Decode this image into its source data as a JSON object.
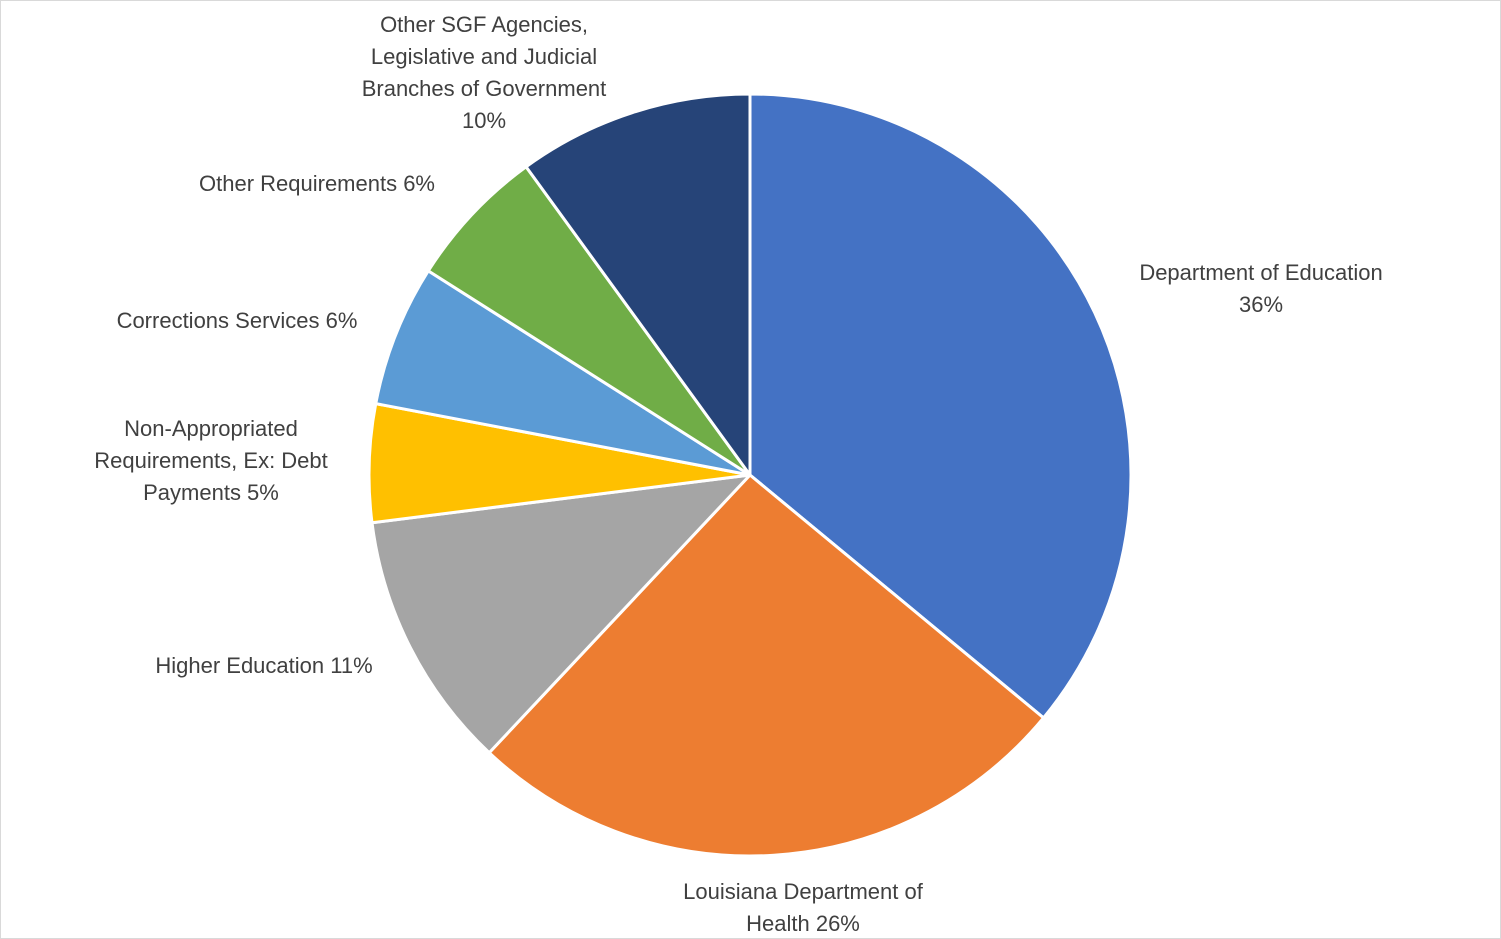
{
  "chart_data": {
    "type": "pie",
    "start_angle_deg": 0,
    "direction": "clockwise",
    "slices": [
      {
        "label_lines": [
          "Department of Education",
          "36%"
        ],
        "name": "Department of Education",
        "value": 36,
        "color": "#4472c4"
      },
      {
        "label_lines": [
          "Louisiana Department of",
          "Health 26%"
        ],
        "name": "Louisiana Department of Health",
        "value": 26,
        "color": "#ed7d31"
      },
      {
        "label_lines": [
          "Higher Education 11%"
        ],
        "name": "Higher Education",
        "value": 11,
        "color": "#a5a5a5"
      },
      {
        "label_lines": [
          "Non-Appropriated",
          "Requirements, Ex: Debt",
          "Payments 5%"
        ],
        "name": "Non-Appropriated Requirements, Ex: Debt Payments",
        "value": 5,
        "color": "#ffc000"
      },
      {
        "label_lines": [
          "Corrections Services 6%"
        ],
        "name": "Corrections Services",
        "value": 6,
        "color": "#5b9bd5"
      },
      {
        "label_lines": [
          "Other Requirements 6%"
        ],
        "name": "Other Requirements",
        "value": 6,
        "color": "#70ad47"
      },
      {
        "label_lines": [
          "Other SGF Agencies,",
          "Legislative and Judicial",
          "Branches of Government",
          "10%"
        ],
        "name": "Other SGF Agencies, Legislative and Judicial Branches of Government",
        "value": 10,
        "color": "#264478"
      }
    ]
  }
}
